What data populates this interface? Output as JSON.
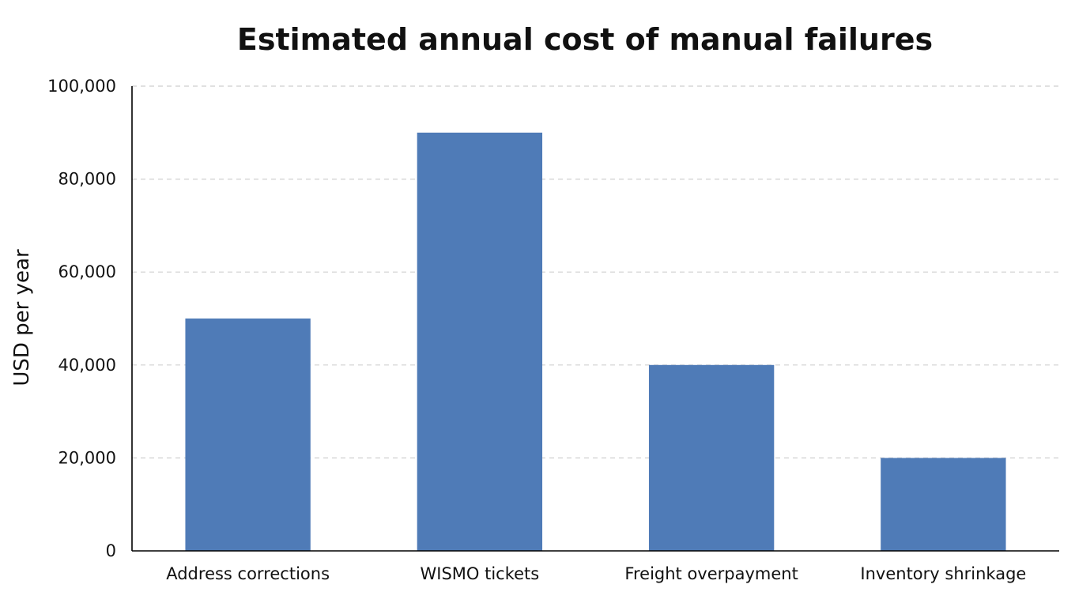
{
  "chart_data": {
    "type": "bar",
    "title": "Estimated annual cost of manual failures",
    "xlabel": "",
    "ylabel": "USD per year",
    "categories": [
      "Address corrections",
      "WISMO tickets",
      "Freight overpayment",
      "Inventory shrinkage"
    ],
    "values": [
      50000,
      90000,
      40000,
      20000
    ],
    "ylim": [
      0,
      100000
    ],
    "yticks": [
      0,
      20000,
      40000,
      60000,
      80000,
      100000
    ],
    "ytick_labels": [
      "0",
      "20,000",
      "40,000",
      "60,000",
      "80,000",
      "100,000"
    ],
    "grid": true,
    "legend": "none",
    "bar_color": "#4f7bb7"
  }
}
